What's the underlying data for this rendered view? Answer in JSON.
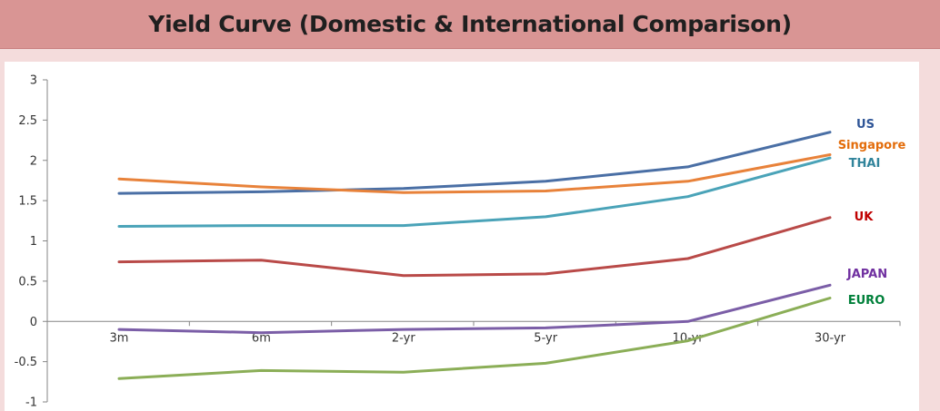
{
  "chart_data": {
    "type": "line",
    "title": "Yield Curve (Domestic & International Comparison)",
    "xlabel": "",
    "ylabel": "",
    "categories": [
      "3m",
      "6m",
      "2-yr",
      "5-yr",
      "10-yr",
      "30-yr"
    ],
    "y_ticks": [
      "3",
      "2.5",
      "2",
      "1.5",
      "1",
      "0.5",
      "0",
      "-0.5",
      "-1"
    ],
    "ylim": [
      -1,
      3
    ],
    "grid": false,
    "legend": "inline-right",
    "series": [
      {
        "name": "US",
        "color": "#4a6fa5",
        "values": [
          1.59,
          1.61,
          1.65,
          1.74,
          1.92,
          2.35
        ]
      },
      {
        "name": "Singapore",
        "color": "#e8823a",
        "values": [
          1.77,
          1.67,
          1.6,
          1.62,
          1.74,
          2.07
        ]
      },
      {
        "name": "THAI",
        "color": "#4aa3b8",
        "values": [
          1.18,
          1.19,
          1.19,
          1.3,
          1.55,
          2.03
        ]
      },
      {
        "name": "UK",
        "color": "#b94a48",
        "values": [
          0.74,
          0.76,
          0.57,
          0.59,
          0.78,
          1.29
        ]
      },
      {
        "name": "JAPAN",
        "color": "#7b5ea7",
        "values": [
          -0.1,
          -0.14,
          -0.1,
          -0.08,
          0.0,
          0.45
        ]
      },
      {
        "name": "EURO",
        "color": "#8bae57",
        "values": [
          -0.71,
          -0.61,
          -0.63,
          -0.52,
          -0.24,
          0.29
        ]
      }
    ],
    "label_colors": {
      "US": "#2f5597",
      "Singapore": "#e36c0a",
      "THAI": "#31849b",
      "UK": "#c00000",
      "JAPAN": "#7030a0",
      "EURO": "#00803a"
    }
  }
}
